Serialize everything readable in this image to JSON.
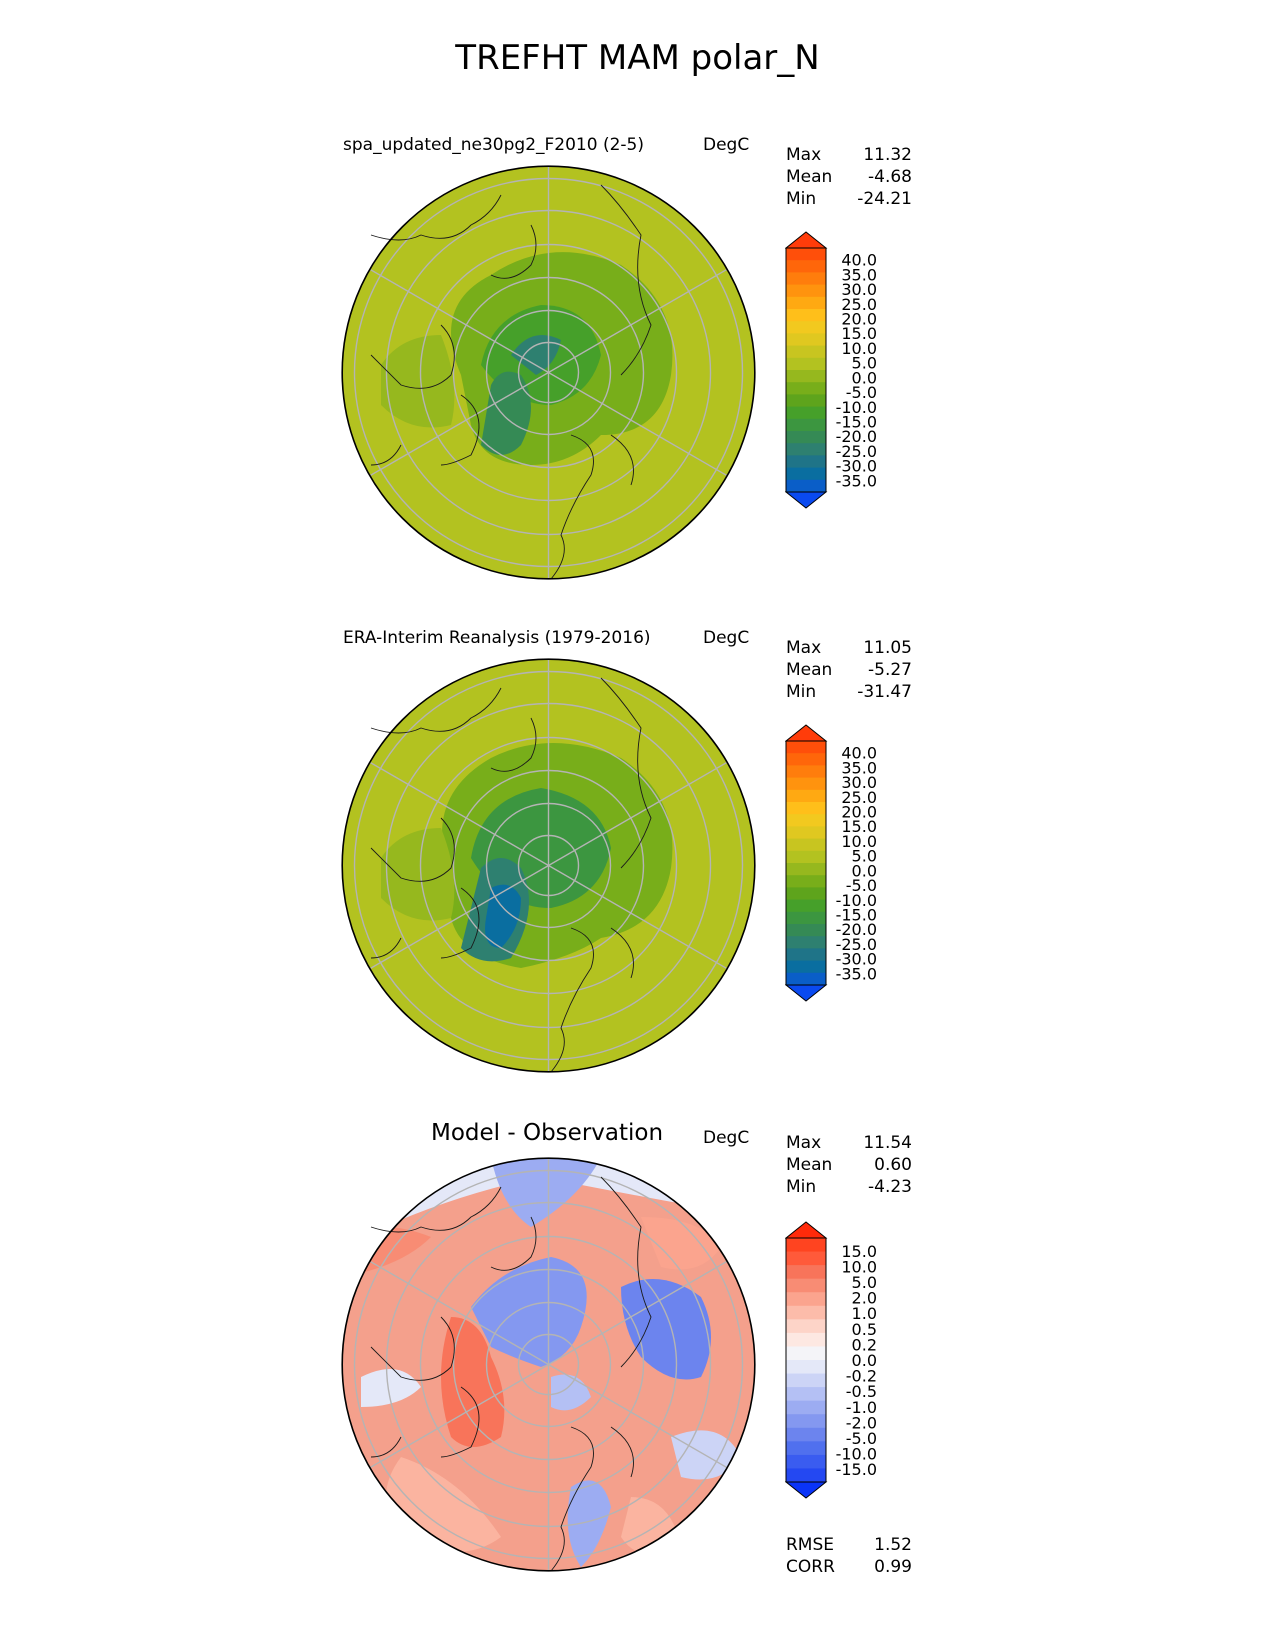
{
  "title": "TREFHT MAM polar_N",
  "panels": [
    {
      "label": "spa_updated_ne30pg2_F2010 (2-5)",
      "unit": "DegC",
      "stats": [
        {
          "key": "Max",
          "value": "11.32"
        },
        {
          "key": "Mean",
          "value": "-4.68"
        },
        {
          "key": "Min",
          "value": "-24.21"
        }
      ],
      "colorbar": {
        "ticks": [
          "40.0",
          "35.0",
          "30.0",
          "25.0",
          "20.0",
          "15.0",
          "10.0",
          "5.0",
          "0.0",
          "-5.0",
          "-10.0",
          "-15.0",
          "-20.0",
          "-25.0",
          "-30.0",
          "-35.0"
        ],
        "colors": [
          "#ff3c0a",
          "#ff4f0a",
          "#ff660a",
          "#ff7d0c",
          "#ff930e",
          "#ffa912",
          "#ffbf1a",
          "#f2c91f",
          "#e0c820",
          "#c8c520",
          "#b3c220",
          "#96b81e",
          "#78ae1a",
          "#5ea41c",
          "#46a02a",
          "#3c9640",
          "#358a55",
          "#2e8070",
          "#1f7488",
          "#0a6ea0",
          "#0a5ec8",
          "#0a4af0"
        ]
      },
      "map_fill": "#b3c220"
    },
    {
      "label": "ERA-Interim Reanalysis (1979-2016)",
      "unit": "DegC",
      "stats": [
        {
          "key": "Max",
          "value": "11.05"
        },
        {
          "key": "Mean",
          "value": "-5.27"
        },
        {
          "key": "Min",
          "value": "-31.47"
        }
      ],
      "colorbar": {
        "ticks": [
          "40.0",
          "35.0",
          "30.0",
          "25.0",
          "20.0",
          "15.0",
          "10.0",
          "5.0",
          "0.0",
          "-5.0",
          "-10.0",
          "-15.0",
          "-20.0",
          "-25.0",
          "-30.0",
          "-35.0"
        ],
        "colors": [
          "#ff3c0a",
          "#ff4f0a",
          "#ff660a",
          "#ff7d0c",
          "#ff930e",
          "#ffa912",
          "#ffbf1a",
          "#f2c91f",
          "#e0c820",
          "#c8c520",
          "#b3c220",
          "#96b81e",
          "#78ae1a",
          "#5ea41c",
          "#46a02a",
          "#3c9640",
          "#358a55",
          "#2e8070",
          "#1f7488",
          "#0a6ea0",
          "#0a5ec8",
          "#0a4af0"
        ]
      },
      "map_fill": "#b3c220"
    },
    {
      "label": "Model - Observation",
      "unit": "DegC",
      "stats": [
        {
          "key": "Max",
          "value": "11.54"
        },
        {
          "key": "Mean",
          "value": "0.60"
        },
        {
          "key": "Min",
          "value": "-4.23"
        }
      ],
      "colorbar": {
        "ticks": [
          "15.0",
          "10.0",
          "5.0",
          "2.0",
          "1.0",
          "0.5",
          "0.2",
          "0.0",
          "-0.2",
          "-0.5",
          "-1.0",
          "-2.0",
          "-5.0",
          "-10.0",
          "-15.0"
        ],
        "colors": [
          "#ff2a0a",
          "#ff4420",
          "#ff5a3a",
          "#f8745a",
          "#f88c74",
          "#fba48e",
          "#fcbcaa",
          "#fdd4c8",
          "#fde8e2",
          "#f4f4f8",
          "#e4e8f8",
          "#ccd4f6",
          "#b4c0f4",
          "#9cacf2",
          "#8498f0",
          "#6c84ee",
          "#5070ee",
          "#3a5cf0",
          "#2448f2",
          "#0a34f8"
        ]
      },
      "map_fill": "#f4a08c",
      "footer_stats": [
        {
          "key": "RMSE",
          "value": "1.52"
        },
        {
          "key": "CORR",
          "value": "0.99"
        }
      ]
    }
  ]
}
